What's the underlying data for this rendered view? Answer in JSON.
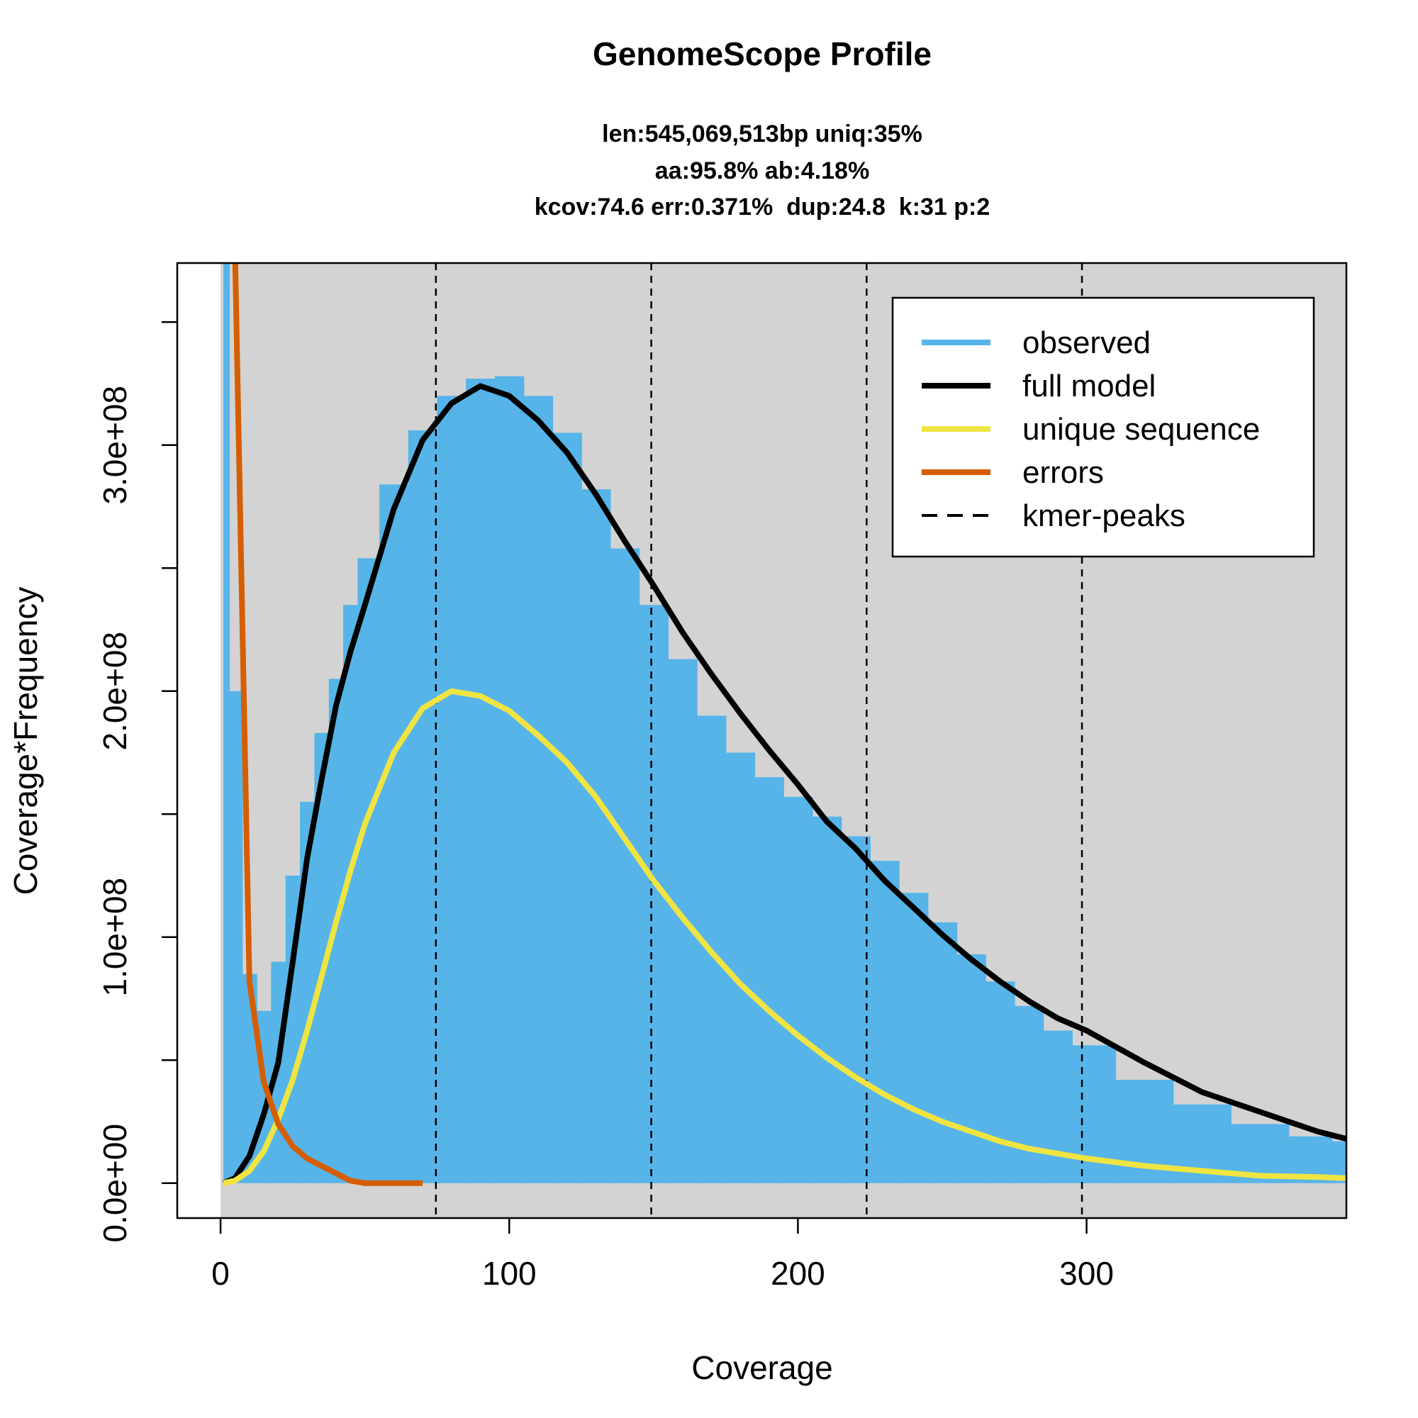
{
  "chart_data": {
    "type": "line",
    "title": "GenomeScope Profile",
    "subtitle": [
      "len:545,069,513bp uniq:35%",
      "aa:95.8% ab:4.18%",
      "kcov:74.6 err:0.371%  dup:24.8  k:31 p:2"
    ],
    "x_label": "Coverage",
    "y_label": "Coverage*Frequency",
    "x": [
      1,
      5,
      10,
      15,
      20,
      25,
      30,
      35,
      40,
      45,
      50,
      60,
      70,
      80,
      90,
      100,
      110,
      120,
      130,
      140,
      150,
      160,
      170,
      180,
      190,
      200,
      210,
      220,
      230,
      240,
      250,
      260,
      270,
      280,
      290,
      300,
      320,
      340,
      360,
      380,
      390
    ],
    "series": [
      {
        "name": "observed",
        "color": "#56b4e9",
        "draw": "bars",
        "values": [
          500000000,
          200000000,
          85000000,
          70000000,
          90000000,
          125000000,
          155000000,
          183000000,
          205000000,
          235000000,
          254000000,
          284000000,
          306000000,
          320000000,
          327000000,
          328000000,
          320000000,
          305000000,
          282000000,
          258000000,
          235000000,
          213000000,
          190000000,
          175000000,
          165000000,
          157000000,
          149000000,
          141000000,
          131000000,
          118000000,
          106000000,
          93000000,
          82000000,
          72000000,
          62000000,
          56000000,
          42000000,
          32000000,
          24000000,
          19000000,
          17000000
        ]
      },
      {
        "name": "full model",
        "color": "#000000",
        "draw": "line",
        "values": [
          0,
          2000000,
          11000000,
          28000000,
          49000000,
          90000000,
          132000000,
          164000000,
          194000000,
          216000000,
          235000000,
          274000000,
          302000000,
          317000000,
          324000000,
          320000000,
          310000000,
          297000000,
          280000000,
          261000000,
          243000000,
          224000000,
          207000000,
          191000000,
          176000000,
          162000000,
          147000000,
          136000000,
          123000000,
          112000000,
          101000000,
          91000000,
          82000000,
          74000000,
          67000000,
          62000000,
          49000000,
          37000000,
          29000000,
          21000000,
          18000000
        ]
      },
      {
        "name": "unique sequence",
        "color": "#f0e442",
        "draw": "line",
        "values": [
          0,
          1000000,
          5000000,
          13000000,
          26000000,
          42000000,
          62000000,
          84000000,
          106000000,
          127000000,
          146000000,
          175000000,
          193000000,
          200000000,
          198000000,
          192000000,
          182000000,
          171000000,
          157000000,
          140000000,
          123000000,
          108000000,
          94000000,
          81000000,
          70000000,
          60000000,
          51000000,
          43000000,
          36000000,
          30000000,
          25000000,
          21000000,
          17000000,
          14000000,
          12000000,
          10000000,
          7000000,
          5000000,
          3000000,
          2500000,
          2000000
        ]
      },
      {
        "name": "errors",
        "color": "#d55e00",
        "draw": "line",
        "values": [
          null,
          380000000,
          82000000,
          41000000,
          24000000,
          15000000,
          10000000,
          7000000,
          4000000,
          1000000,
          0,
          0,
          0,
          null,
          null,
          null,
          null,
          null,
          null,
          null,
          null,
          null,
          null,
          null,
          null,
          null,
          null,
          null,
          null,
          null,
          null,
          null,
          null,
          null,
          null,
          null,
          null,
          null,
          null,
          null,
          null
        ]
      }
    ],
    "vlines": {
      "name": "kmer-peaks",
      "color": "#000000",
      "values": [
        74.6,
        149.2,
        223.8,
        298.4
      ]
    },
    "xlim": [
      -15,
      390
    ],
    "ylim": [
      -14200000,
      374000000
    ],
    "xticks": [
      0,
      100,
      200,
      300
    ],
    "yticks": [
      {
        "value": 0,
        "label": "0.0e+00"
      },
      {
        "value": 100000000,
        "label": "1.0e+08"
      },
      {
        "value": 200000000,
        "label": "2.0e+08"
      },
      {
        "value": 300000000,
        "label": "3.0e+08"
      }
    ],
    "yminor_ticks": [
      50000000,
      150000000,
      250000000,
      350000000
    ],
    "background": "#d3d3d3",
    "legend": "topright"
  }
}
